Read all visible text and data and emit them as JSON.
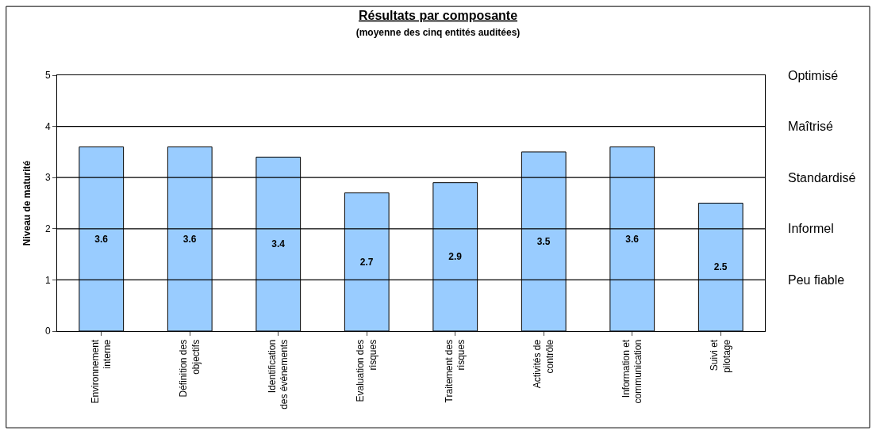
{
  "chart_data": {
    "type": "bar",
    "title": "Résultats par composante",
    "subtitle": "(moyenne des cinq entités auditées)",
    "ylabel": "Niveau de maturité",
    "categories": [
      "Environnement interne",
      "Définition des objectifs",
      "Identification des événements",
      "Evaluation des risques",
      "Traitement des risques",
      "Activités de contrôle",
      "Information et communication",
      "Suivi et pilotage"
    ],
    "values": [
      3.6,
      3.6,
      3.4,
      2.7,
      2.9,
      3.5,
      3.6,
      2.5
    ],
    "color": "#99ccff",
    "data_labels": true,
    "ylim": [
      0,
      5
    ],
    "yticks": [
      0,
      1,
      2,
      3,
      4,
      5
    ],
    "ref_lines": [
      {
        "axis": "y",
        "value": 1,
        "label": "Peu fiable",
        "color": "#000000"
      },
      {
        "axis": "y",
        "value": 2,
        "label": "Informel",
        "color": "#000000"
      },
      {
        "axis": "y",
        "value": 3,
        "label": "Standardisé",
        "color": "#000000"
      },
      {
        "axis": "y",
        "value": 4,
        "label": "Maîtrisé",
        "color": "#000000"
      }
    ],
    "annotations": [
      "Optimisé"
    ]
  }
}
